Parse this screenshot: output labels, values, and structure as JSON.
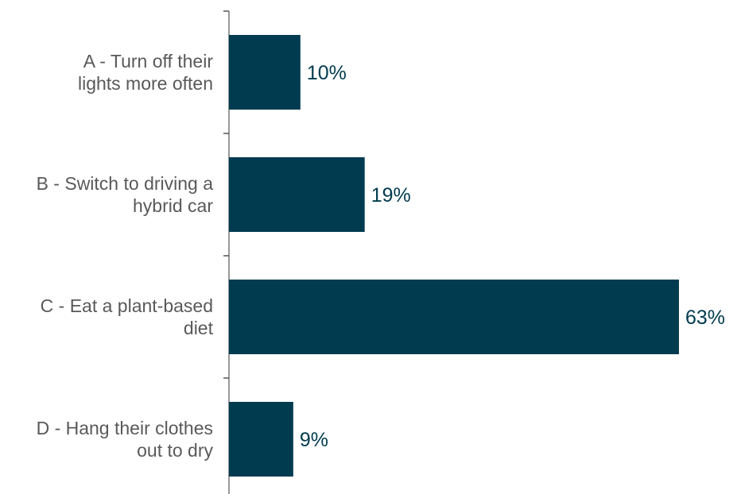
{
  "chart_data": {
    "type": "bar",
    "orientation": "horizontal",
    "categories": [
      [
        "A - Turn off their",
        "lights more often"
      ],
      [
        "B - Switch to driving a",
        "hybrid car"
      ],
      [
        "C - Eat a plant-based",
        "diet"
      ],
      [
        "D - Hang their clothes",
        "out to dry"
      ]
    ],
    "values": [
      10,
      19,
      63,
      9
    ],
    "value_labels": [
      "10%",
      "19%",
      "63%",
      "9%"
    ],
    "unit": "%",
    "xlim": [
      0,
      63
    ],
    "grid": false,
    "legend": "none",
    "title": "",
    "xlabel": "",
    "ylabel": ""
  },
  "colors": {
    "bar": "#003b4f",
    "data_label": "#003b4f",
    "category_label": "#595959",
    "axis": "#555555"
  }
}
